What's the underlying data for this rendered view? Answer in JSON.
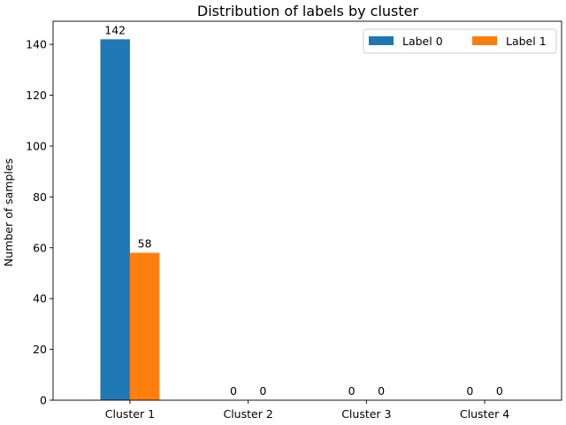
{
  "chart_data": {
    "type": "bar",
    "title": "Distribution of labels by cluster",
    "xlabel": "",
    "ylabel": "Number of samples",
    "categories": [
      "Cluster 1",
      "Cluster 2",
      "Cluster 3",
      "Cluster 4"
    ],
    "series": [
      {
        "name": "Label 0",
        "color": "#1f77b4",
        "values": [
          142,
          0,
          0,
          0
        ]
      },
      {
        "name": "Label 1",
        "color": "#ff7f0e",
        "values": [
          58,
          0,
          0,
          0
        ]
      }
    ],
    "ylim": [
      0,
      149.1
    ],
    "yticks": [
      0,
      20,
      40,
      60,
      80,
      100,
      120,
      140
    ],
    "grid": false,
    "legend_position": "top-right"
  }
}
